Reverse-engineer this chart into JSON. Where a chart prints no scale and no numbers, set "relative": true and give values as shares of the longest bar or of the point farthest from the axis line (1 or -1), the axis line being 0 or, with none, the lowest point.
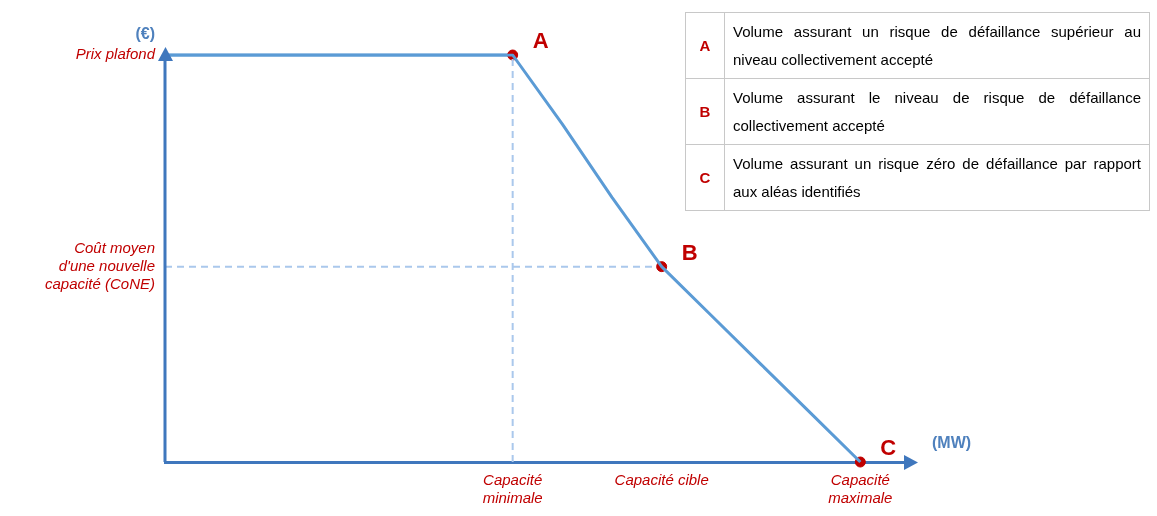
{
  "chart_data": [
    {
      "type": "line",
      "xlabel": "(MW)",
      "ylabel": "(€)",
      "relative": true,
      "categories": [
        null,
        null,
        null,
        null,
        null,
        null,
        null,
        "Capacité minimale",
        null,
        null,
        "Capacité cible",
        null,
        null,
        null,
        "Capacité maximale",
        null
      ],
      "grid": false,
      "legend": false,
      "series": [
        {
          "type": "line",
          "color": "#5b9bd5",
          "values": [
            1,
            1,
            1,
            1,
            1,
            1,
            1,
            1,
            0.83,
            0.65,
            0.48,
            0.36,
            0.24,
            0.12,
            0,
            null
          ],
          "marker": "none",
          "line_style": "solid"
        },
        {
          "type": "line",
          "color": "#aac8ec",
          "x": [
            "Capacité minimale",
            "Capacité minimale"
          ],
          "values": [
            0,
            1
          ],
          "marker": "none",
          "line_style": "dashed"
        },
        {
          "type": "scatter",
          "color": "#c00000",
          "values": [
            null,
            null,
            null,
            null,
            null,
            null,
            null,
            1,
            null,
            null,
            0.48,
            null,
            null,
            null,
            0,
            null
          ],
          "marker": "circle"
        }
      ],
      "ref_lines": [
        {
          "axis": "y",
          "value": 1,
          "label": "Prix plafond",
          "color": "#5b9bd5",
          "line_style": "solid"
        },
        {
          "axis": "y",
          "value": 0.48,
          "label": "Coût moyen d'une nouvelle capacité (CoNE)",
          "color": "#aac8ec",
          "line_style": "dashed"
        }
      ],
      "annotations": [
        {
          "text": "A",
          "x": "Capacité minimale",
          "y": 1
        },
        {
          "text": "B",
          "x": "Capacité cible",
          "y": 0.48
        },
        {
          "text": "C",
          "x": "Capacité maximale",
          "y": 0
        }
      ]
    },
    {
      "type": "other",
      "annotations": [
        "A",
        "Volume assurant un risque de défaillance supérieur au niveau collectivement accepté",
        "B",
        "Volume assurant le niveau de risque de défaillance collectivement accepté",
        "C",
        "Volume assurant un risque zéro de défaillance par rapport aux aléas identifiés"
      ]
    }
  ]
}
